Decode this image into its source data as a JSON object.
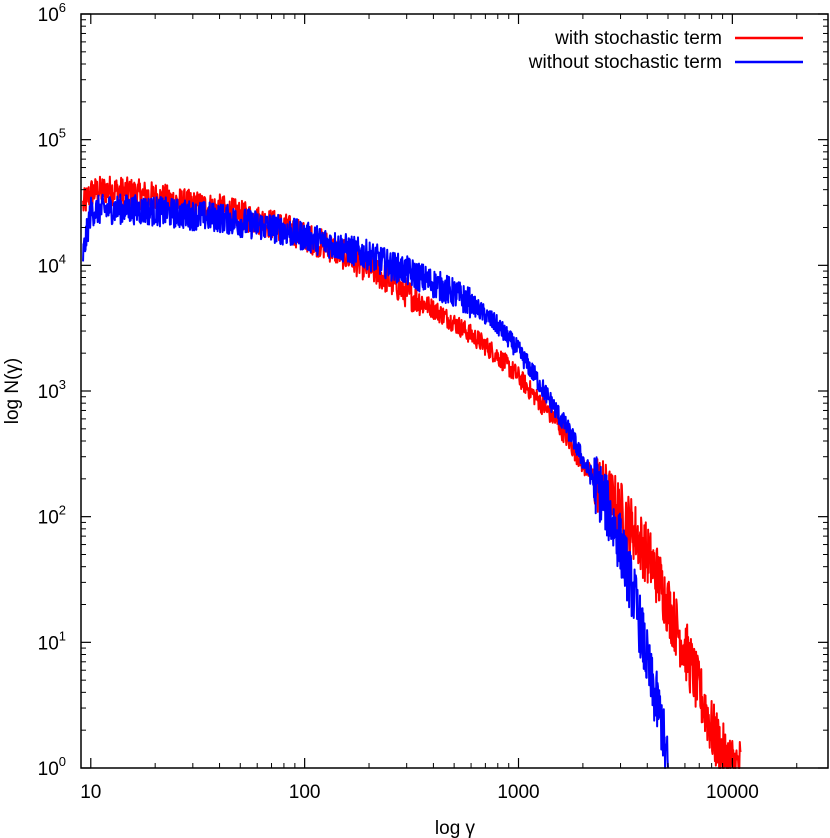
{
  "chart_data": {
    "type": "line",
    "title": "",
    "xlabel": "log γ",
    "ylabel": "log N(γ)",
    "x_scale": "log",
    "y_scale": "log",
    "xlim": [
      9,
      28000
    ],
    "ylim": [
      1,
      1000000
    ],
    "grid": false,
    "legend_position": "top-right",
    "x_ticks": [
      {
        "value": 10,
        "label": "10"
      },
      {
        "value": 100,
        "label": "100"
      },
      {
        "value": 1000,
        "label": "1000"
      },
      {
        "value": 10000,
        "label": "10000"
      }
    ],
    "y_ticks": [
      {
        "value": 1,
        "base": "10",
        "exp": "0"
      },
      {
        "value": 10,
        "base": "10",
        "exp": "1"
      },
      {
        "value": 100,
        "base": "10",
        "exp": "2"
      },
      {
        "value": 1000,
        "base": "10",
        "exp": "3"
      },
      {
        "value": 10000,
        "base": "10",
        "exp": "4"
      },
      {
        "value": 100000,
        "base": "10",
        "exp": "5"
      },
      {
        "value": 1000000,
        "base": "10",
        "exp": "6"
      }
    ],
    "series": [
      {
        "name": "with stochastic term",
        "color": "#ff0000",
        "x": [
          9.2,
          10,
          12,
          15,
          20,
          30,
          40,
          50,
          60,
          80,
          100,
          130,
          170,
          200,
          250,
          300,
          400,
          500,
          600,
          700,
          800,
          1000,
          1200,
          1500,
          1800,
          2000,
          2500,
          3000,
          3500,
          4000,
          4500,
          5000,
          5500,
          6000,
          6500,
          7000,
          7500,
          8000,
          8500,
          9000,
          9500,
          10000,
          10500,
          11000
        ],
        "y": [
          30000,
          38000,
          40000,
          38000,
          35000,
          30000,
          28000,
          25000,
          23000,
          20000,
          17000,
          14000,
          11000,
          9500,
          7500,
          6000,
          4500,
          3500,
          2800,
          2300,
          1900,
          1300,
          900,
          580,
          350,
          260,
          160,
          110,
          75,
          50,
          33,
          20,
          13,
          9,
          6,
          4,
          3,
          2,
          1.6,
          1.3,
          1.15,
          1.05,
          1.02,
          1
        ]
      },
      {
        "name": "without stochastic term",
        "color": "#0000ff",
        "x": [
          9.2,
          10,
          12,
          15,
          20,
          30,
          40,
          50,
          60,
          80,
          100,
          130,
          170,
          200,
          250,
          300,
          400,
          500,
          600,
          700,
          800,
          1000,
          1200,
          1500,
          1800,
          2000,
          2500,
          3000,
          3500,
          4000,
          4200,
          4500,
          4700,
          4800,
          4900,
          5000
        ],
        "y": [
          12000,
          27000,
          28000,
          28000,
          27000,
          25000,
          24000,
          22000,
          21000,
          19000,
          17000,
          15000,
          13000,
          12000,
          10000,
          9000,
          7200,
          6000,
          5000,
          4000,
          3300,
          2100,
          1300,
          700,
          420,
          280,
          140,
          60,
          22,
          7,
          4.5,
          3,
          2.2,
          1.6,
          1.2,
          1
        ]
      }
    ]
  }
}
